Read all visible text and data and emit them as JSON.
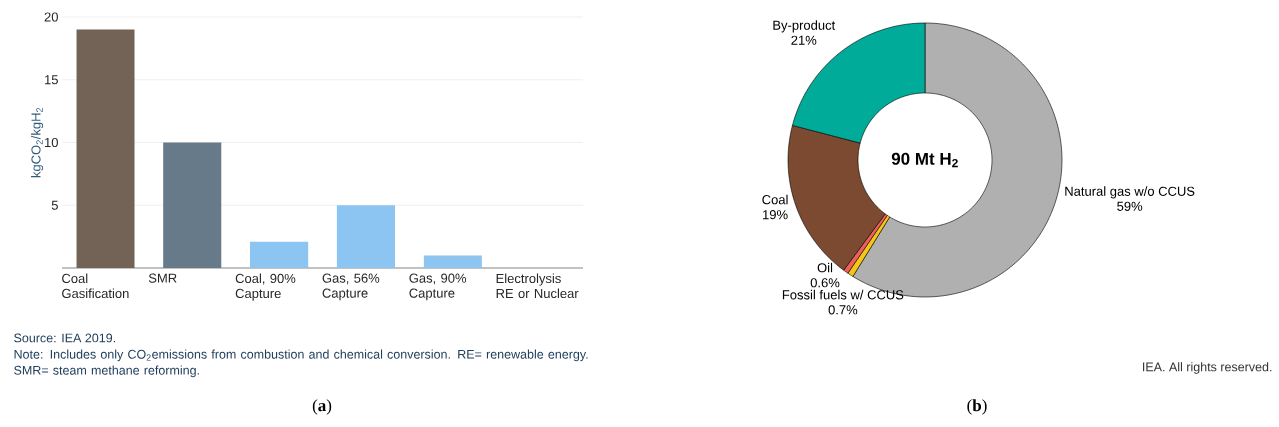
{
  "chart_data": [
    {
      "type": "bar",
      "ylabel": "kgCO$_{2}$/kgH$_{2}$",
      "categories": [
        "Coal Gasification",
        "SMR",
        "Coal, 90% Capture",
        "Gas, 56% Capture",
        "Gas, 90% Capture",
        "Electrolysis RE or Nuclear"
      ],
      "values": [
        19,
        10,
        2.1,
        5,
        1,
        0
      ],
      "colors": [
        "#736357",
        "#667a89",
        "#8cc4f2",
        "#8cc4f2",
        "#8cc4f2",
        "#8cc4f2"
      ],
      "ylim": [
        0,
        20
      ],
      "yticks": [
        5,
        10,
        15,
        20
      ],
      "grid": "y",
      "annotations": [
        "Source: IEA 2019.",
        "Note: Includes only CO$_{2}$emissions from combustion and chemical conversion. RE= renewable energy. SMR= steam methane reforming.",
        "(**a**)"
      ]
    },
    {
      "type": "donut",
      "categories": [
        "Natural gas w/o CCUS",
        "Fossil fuels w/ CCUS",
        "Oil",
        "Coal",
        "By-product"
      ],
      "values": [
        59,
        0.7,
        0.6,
        19,
        21
      ],
      "value_labels": [
        "59%",
        "0.7%",
        "0.6%",
        "19%",
        "21%"
      ],
      "colors": [
        "#b0b0b0",
        "#f5c518",
        "#f0605a",
        "#7b4a30",
        "#00ab9a"
      ],
      "annotations": [
        "90 Mt H$_{2}$",
        "IEA. All rights reserved.",
        "(**b**)"
      ]
    }
  ]
}
